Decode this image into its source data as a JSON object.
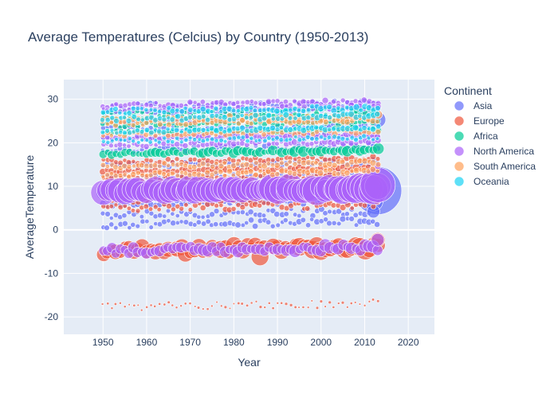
{
  "chart_data": {
    "type": "scatter",
    "title": "Average Temperatures (Celcius) by Country (1950-2013)",
    "xlabel": "Year",
    "ylabel": "AverageTemperature",
    "xlim": [
      1941,
      2026
    ],
    "ylim": [
      -24,
      34.5
    ],
    "x_ticks": [
      1950,
      1960,
      1970,
      1980,
      1990,
      2000,
      2010,
      2020
    ],
    "y_ticks": [
      -20,
      -10,
      0,
      10,
      20,
      30
    ],
    "grid": true,
    "legend_position": "right",
    "legend_title": "Continent",
    "year_range": [
      1950,
      2013
    ],
    "series": [
      {
        "name": "Asia",
        "color": "#636efa",
        "bands": [
          {
            "y": 28.2,
            "spread": 0.8,
            "size": [
              2,
              4
            ]
          },
          {
            "y": 26.8,
            "spread": 0.6,
            "size": [
              2,
              4
            ]
          },
          {
            "y": 24.9,
            "spread": 0.6,
            "size": [
              2,
              4
            ]
          },
          {
            "y": 23.1,
            "spread": 0.6,
            "size": [
              2,
              4
            ]
          },
          {
            "y": 20.6,
            "spread": 0.5,
            "size": [
              2,
              4
            ]
          },
          {
            "y": 18.3,
            "spread": 0.6,
            "size": [
              2,
              4
            ]
          },
          {
            "y": 14.8,
            "spread": 0.6,
            "size": [
              2,
              4
            ]
          },
          {
            "y": 12.0,
            "spread": 0.6,
            "size": [
              2,
              4
            ]
          },
          {
            "y": 8.2,
            "spread": 0.8,
            "size": [
              4,
              14
            ]
          },
          {
            "y": 6.0,
            "spread": 0.6,
            "size": [
              2,
              5
            ]
          },
          {
            "y": 3.4,
            "spread": 0.8,
            "size": [
              2,
              4
            ]
          },
          {
            "y": 1.1,
            "spread": 0.8,
            "size": [
              2,
              4
            ]
          }
        ],
        "highlights": [
          {
            "x": 2013,
            "y": 25.3,
            "size": 10
          },
          {
            "x": 2013,
            "y": 9.0,
            "size": 30
          },
          {
            "x": 2012,
            "y": 6.5,
            "size": 12
          },
          {
            "x": 2012,
            "y": 4.2,
            "size": 8
          }
        ]
      },
      {
        "name": "Europe",
        "color": "#ef553b",
        "bands": [
          {
            "y": 15.6,
            "spread": 0.5,
            "size": [
              2,
              4
            ]
          },
          {
            "y": 13.4,
            "spread": 0.4,
            "size": [
              2,
              5
            ]
          },
          {
            "y": 11.6,
            "spread": 0.5,
            "size": [
              2,
              4
            ]
          },
          {
            "y": 9.6,
            "spread": 0.6,
            "size": [
              2,
              5
            ]
          },
          {
            "y": 7.0,
            "spread": 0.8,
            "size": [
              2,
              5
            ]
          },
          {
            "y": 5.0,
            "spread": 0.8,
            "size": [
              2,
              4
            ]
          },
          {
            "y": -4.8,
            "spread": 1.0,
            "size": [
              4,
              12
            ]
          },
          {
            "y": -17.7,
            "spread": 0.9,
            "size": [
              1,
              2
            ]
          }
        ],
        "highlights": [
          {
            "x": 2013,
            "y": -2.3,
            "size": 9
          },
          {
            "x": 1986,
            "y": -6.2,
            "size": 11
          },
          {
            "x": 1989,
            "y": -3.8,
            "size": 10
          }
        ]
      },
      {
        "name": "Africa",
        "color": "#00cc96",
        "bands": [
          {
            "y": 27.0,
            "spread": 0.5,
            "size": [
              2,
              4
            ]
          },
          {
            "y": 25.6,
            "spread": 0.5,
            "size": [
              2,
              4
            ]
          },
          {
            "y": 24.0,
            "spread": 0.5,
            "size": [
              2,
              4
            ]
          },
          {
            "y": 22.3,
            "spread": 0.5,
            "size": [
              2,
              4
            ]
          },
          {
            "y": 17.5,
            "spread": 0.4,
            "size": [
              2,
              7
            ]
          }
        ],
        "highlights": []
      },
      {
        "name": "North America",
        "color": "#ab63fa",
        "bands": [
          {
            "y": 28.6,
            "spread": 0.5,
            "size": [
              2,
              4
            ]
          },
          {
            "y": 27.4,
            "spread": 0.5,
            "size": [
              2,
              4
            ]
          },
          {
            "y": 21.0,
            "spread": 0.5,
            "size": [
              2,
              5
            ]
          },
          {
            "y": 19.4,
            "spread": 0.4,
            "size": [
              2,
              4
            ]
          },
          {
            "y": 8.8,
            "spread": 0.5,
            "size": [
              10,
              18
            ]
          },
          {
            "y": -4.8,
            "spread": 0.7,
            "size": [
              4,
              8
            ]
          }
        ],
        "highlights": [
          {
            "x": 2013,
            "y": 10.3,
            "size": 22
          },
          {
            "x": 2013,
            "y": 14.6,
            "size": 4
          },
          {
            "x": 2013,
            "y": -2.3,
            "size": 8
          }
        ]
      },
      {
        "name": "South America",
        "color": "#ffa15a",
        "bands": [
          {
            "y": 25.2,
            "spread": 0.6,
            "size": [
              2,
              5
            ]
          },
          {
            "y": 24.4,
            "spread": 0.5,
            "size": [
              2,
              4
            ]
          },
          {
            "y": 21.8,
            "spread": 0.5,
            "size": [
              2,
              4
            ]
          },
          {
            "y": 14.6,
            "spread": 0.5,
            "size": [
              2,
              4
            ]
          },
          {
            "y": 12.6,
            "spread": 0.5,
            "size": [
              2,
              4
            ]
          }
        ],
        "highlights": []
      },
      {
        "name": "Oceania",
        "color": "#19d3f3",
        "bands": [
          {
            "y": 27.2,
            "spread": 0.6,
            "size": [
              2,
              4
            ]
          },
          {
            "y": 25.4,
            "spread": 0.5,
            "size": [
              2,
              4
            ]
          },
          {
            "y": 22.6,
            "spread": 0.4,
            "size": [
              2,
              4
            ]
          },
          {
            "y": 20.4,
            "spread": 0.5,
            "size": [
              2,
              3
            ]
          }
        ],
        "highlights": []
      }
    ]
  }
}
